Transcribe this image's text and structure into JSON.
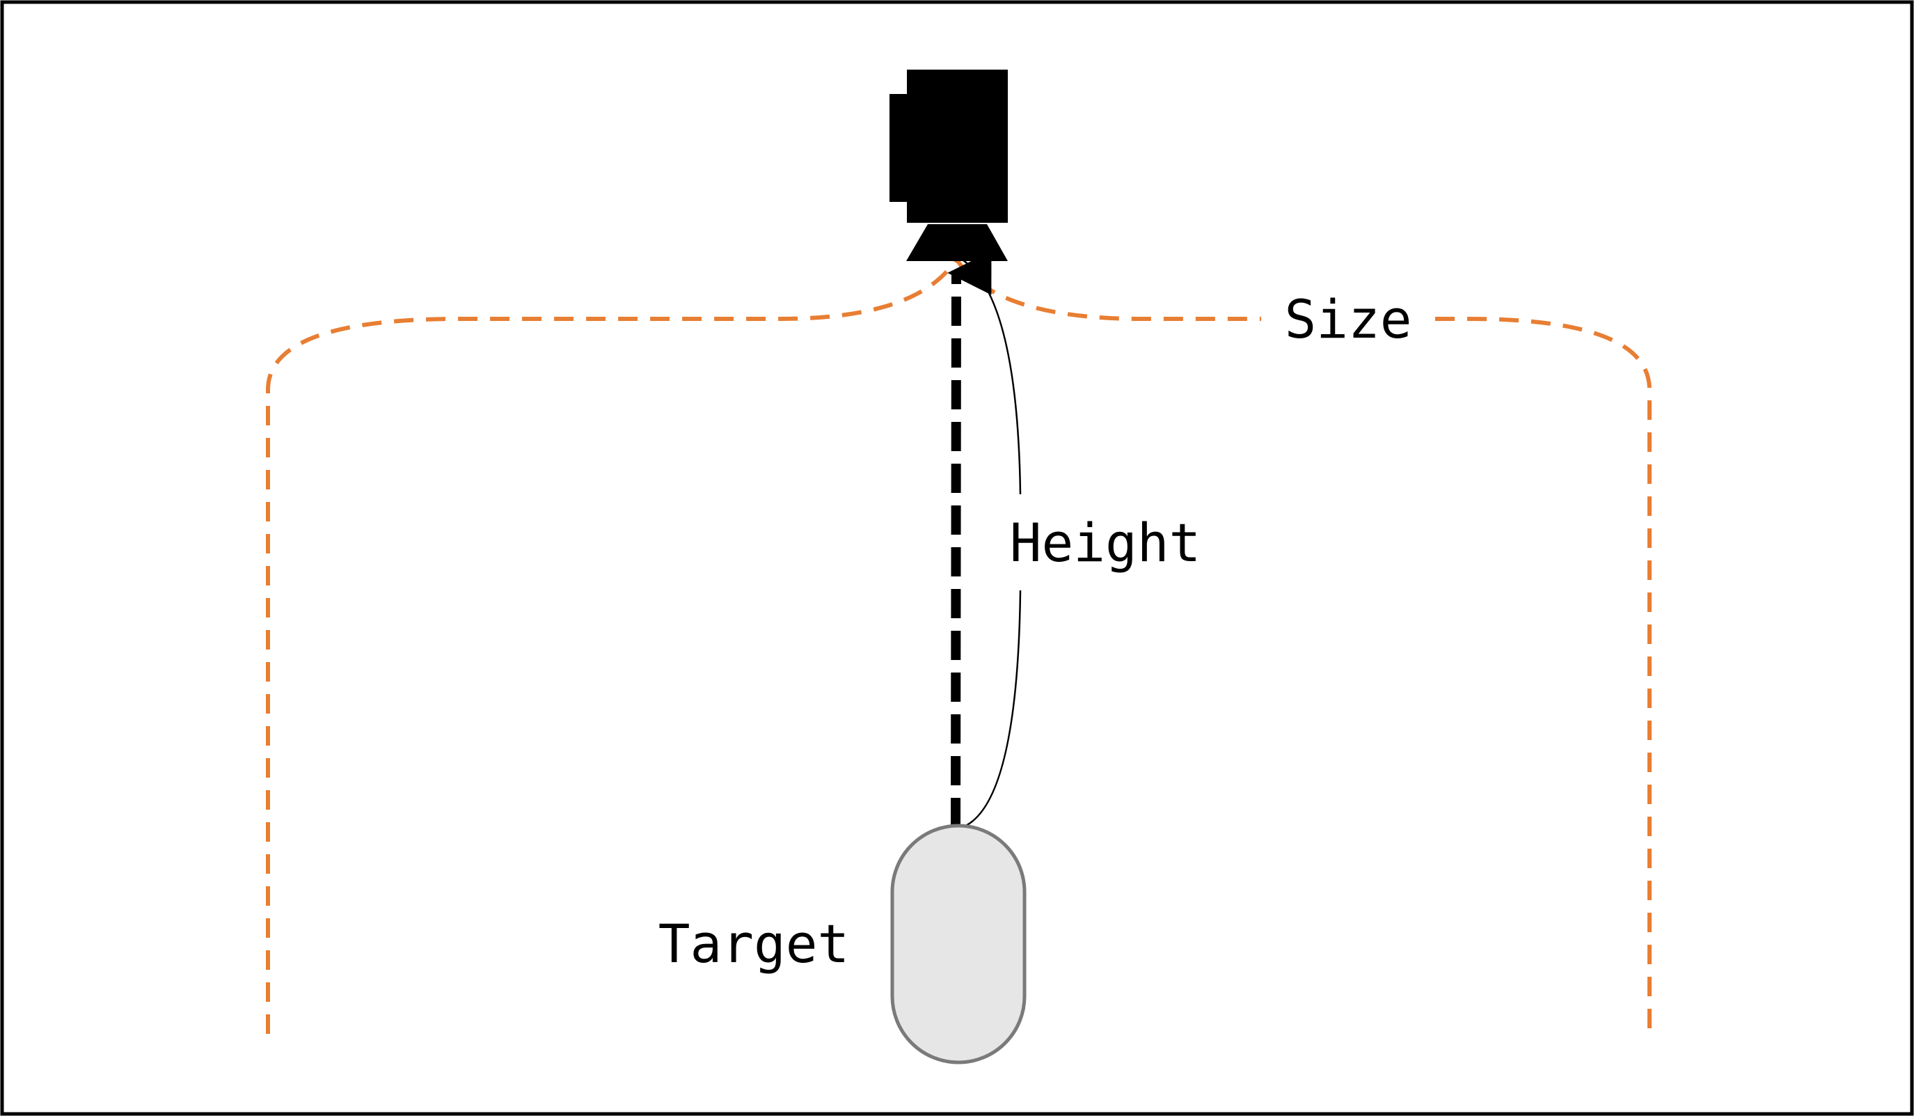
{
  "labels": {
    "size": "Size",
    "height": "Height",
    "target": "Target"
  },
  "icons": {
    "camera": "camera-icon",
    "target": "target-capsule"
  },
  "colors": {
    "frame": "#000000",
    "coverage_line": "#E87E33",
    "target_fill": "#E6E6E6",
    "target_stroke": "#7A7A7A",
    "height_line": "#000000"
  }
}
